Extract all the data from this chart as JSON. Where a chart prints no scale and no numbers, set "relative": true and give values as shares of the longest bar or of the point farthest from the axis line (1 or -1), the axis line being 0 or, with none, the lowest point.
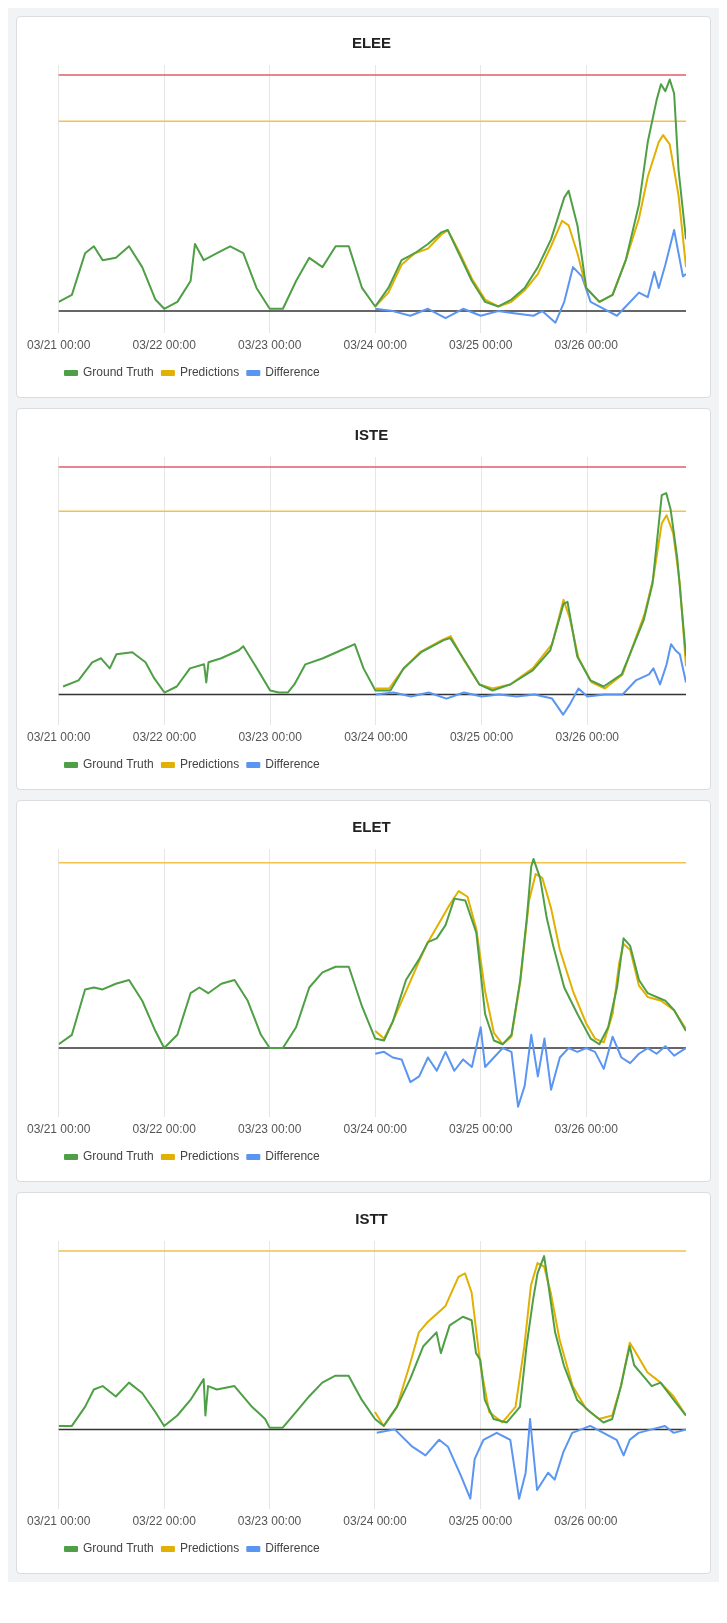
{
  "chart_data": [
    {
      "type": "line",
      "title": "ELEE",
      "relative": true,
      "grid": "x",
      "legend": "bottom left",
      "xlim": [
        "--03-21T00:00",
        "--03-26T22:42"
      ],
      "xticks": [
        {
          "value": "--03-21T00:00",
          "label": "03/21 00:00"
        },
        {
          "value": "--03-22T00:00",
          "label": "03/22 00:00"
        },
        {
          "value": "--03-23T00:00",
          "label": "03/23 00:00"
        },
        {
          "value": "--03-24T00:00",
          "label": "03/24 00:00"
        },
        {
          "value": "--03-25T00:00",
          "label": "03/25 00:00"
        },
        {
          "value": "--03-26T00:00",
          "label": "03/26 00:00"
        }
      ],
      "ref_lines": [
        {
          "axis": "y",
          "value": 1.02,
          "color": "#e25c6a"
        },
        {
          "axis": "y",
          "value": 0.82,
          "color": "#f2c14e"
        }
      ],
      "series": [
        {
          "name": "Ground Truth",
          "color": "#4e9f45",
          "x": [
            "--03-21T00:00",
            "--03-21T03:00",
            "--03-21T06:00",
            "--03-21T08:00",
            "--03-21T10:00",
            "--03-21T13:00",
            "--03-21T16:00",
            "--03-21T19:00",
            "--03-21T22:00",
            "--03-22T00:00",
            "--03-22T03:00",
            "--03-22T06:00",
            "--03-22T07:00",
            "--03-22T09:00",
            "--03-22T12:00",
            "--03-22T15:00",
            "--03-22T18:00",
            "--03-22T21:00",
            "--03-23T00:00",
            "--03-23T03:00",
            "--03-23T06:00",
            "--03-23T09:00",
            "--03-23T12:00",
            "--03-23T15:00",
            "--03-23T18:00",
            "--03-23T21:00",
            "--03-24T00:00",
            "--03-24T03:00",
            "--03-24T06:00",
            "--03-24T09:00",
            "--03-24T12:00",
            "--03-24T15:00",
            "--03-24T16:30",
            "--03-24T19:00",
            "--03-24T22:00",
            "--03-25T01:00",
            "--03-25T04:00",
            "--03-25T07:00",
            "--03-25T10:00",
            "--03-25T13:00",
            "--03-25T16:00",
            "--03-25T19:00",
            "--03-25T20:00",
            "--03-25T22:00",
            "--03-26T00:00",
            "--03-26T03:00",
            "--03-26T06:00",
            "--03-26T09:00",
            "--03-26T12:00",
            "--03-26T14:00",
            "--03-26T16:00",
            "--03-26T17:00",
            "--03-26T18:00",
            "--03-26T19:00",
            "--03-26T20:00",
            "--03-26T21:00",
            "--03-26T22:42"
          ],
          "values": [
            0.04,
            0.07,
            0.25,
            0.28,
            0.22,
            0.23,
            0.28,
            0.19,
            0.05,
            0.01,
            0.04,
            0.13,
            0.29,
            0.22,
            0.25,
            0.28,
            0.25,
            0.1,
            0.01,
            0.01,
            0.13,
            0.23,
            0.19,
            0.28,
            0.28,
            0.1,
            0.02,
            0.1,
            0.22,
            0.25,
            0.29,
            0.34,
            0.35,
            0.25,
            0.13,
            0.04,
            0.02,
            0.05,
            0.1,
            0.19,
            0.31,
            0.49,
            0.52,
            0.37,
            0.1,
            0.04,
            0.07,
            0.22,
            0.46,
            0.73,
            0.91,
            0.98,
            0.95,
            1,
            0.94,
            0.61,
            0.31
          ]
        },
        {
          "name": "Predictions",
          "color": "#e2b000",
          "x": [
            "--03-24T00:00",
            "--03-24T03:00",
            "--03-24T06:00",
            "--03-24T09:00",
            "--03-24T12:00",
            "--03-24T15:00",
            "--03-24T16:30",
            "--03-24T19:00",
            "--03-24T22:00",
            "--03-25T01:00",
            "--03-25T04:00",
            "--03-25T07:00",
            "--03-25T10:00",
            "--03-25T13:00",
            "--03-25T16:00",
            "--03-25T18:30",
            "--03-25T20:00",
            "--03-25T22:00",
            "--03-26T00:00",
            "--03-26T03:00",
            "--03-26T06:00",
            "--03-26T09:00",
            "--03-26T12:00",
            "--03-26T14:00",
            "--03-26T16:30",
            "--03-26T17:30",
            "--03-26T19:00",
            "--03-26T21:00",
            "--03-26T22:42"
          ],
          "values": [
            0.02,
            0.08,
            0.2,
            0.25,
            0.27,
            0.33,
            0.35,
            0.26,
            0.14,
            0.05,
            0.02,
            0.04,
            0.09,
            0.16,
            0.28,
            0.39,
            0.37,
            0.25,
            0.1,
            0.04,
            0.07,
            0.22,
            0.4,
            0.58,
            0.73,
            0.76,
            0.72,
            0.5,
            0.19
          ]
        },
        {
          "name": "Difference",
          "color": "#5b95f2",
          "x": [
            "--03-24T00:00",
            "--03-24T04:00",
            "--03-24T08:00",
            "--03-24T12:00",
            "--03-24T16:00",
            "--03-24T20:00",
            "--03-25T00:00",
            "--03-25T04:00",
            "--03-25T08:00",
            "--03-25T12:00",
            "--03-25T14:00",
            "--03-25T17:00",
            "--03-25T19:00",
            "--03-25T21:00",
            "--03-25T23:00",
            "--03-26T01:00",
            "--03-26T04:00",
            "--03-26T07:00",
            "--03-26T09:00",
            "--03-26T12:00",
            "--03-26T14:00",
            "--03-26T15:30",
            "--03-26T16:30",
            "--03-26T18:00",
            "--03-26T20:00",
            "--03-26T21:00",
            "--03-26T22:00",
            "--03-26T22:42"
          ],
          "values": [
            0.01,
            0,
            -0.02,
            0.01,
            -0.03,
            0.01,
            -0.02,
            0,
            -0.01,
            -0.02,
            0,
            -0.05,
            0.04,
            0.19,
            0.15,
            0.04,
            0.01,
            -0.02,
            0.02,
            0.08,
            0.06,
            0.17,
            0.1,
            0.2,
            0.35,
            0.25,
            0.15,
            0.16
          ]
        }
      ]
    },
    {
      "type": "line",
      "title": "ISTE",
      "relative": true,
      "grid": "x",
      "legend": "bottom left",
      "xlim": [
        "--03-21T00:00",
        "--03-26T22:24"
      ],
      "xticks": [
        {
          "value": "--03-21T00:00",
          "label": "03/21 00:00"
        },
        {
          "value": "--03-22T00:00",
          "label": "03/22 00:00"
        },
        {
          "value": "--03-23T00:00",
          "label": "03/23 00:00"
        },
        {
          "value": "--03-24T00:00",
          "label": "03/24 00:00"
        },
        {
          "value": "--03-25T00:00",
          "label": "03/25 00:00"
        },
        {
          "value": "--03-26T00:00",
          "label": "03/26 00:00"
        }
      ],
      "ref_lines": [
        {
          "axis": "y",
          "value": 1.13,
          "color": "#e25c6a"
        },
        {
          "axis": "y",
          "value": 0.91,
          "color": "#f2c14e"
        }
      ],
      "series": [
        {
          "name": "Ground Truth",
          "color": "#4e9f45",
          "x": [
            "--03-21T01:00",
            "--03-21T04:30",
            "--03-21T07:36",
            "--03-21T09:36",
            "--03-21T11:36",
            "--03-21T13:06",
            "--03-21T16:42",
            "--03-21T19:42",
            "--03-21T21:42",
            "--03-22T00:00",
            "--03-22T02:48",
            "--03-22T05:48",
            "--03-22T09:00",
            "--03-22T09:30",
            "--03-22T10:00",
            "--03-22T12:54",
            "--03-22T16:54",
            "--03-22T17:54",
            "--03-22T21:00",
            "--03-23T00:00",
            "--03-23T02:00",
            "--03-23T04:00",
            "--03-23T05:30",
            "--03-23T08:00",
            "--03-23T12:00",
            "--03-23T16:06",
            "--03-23T19:12",
            "--03-23T21:12",
            "--03-23T23:54",
            "--03-24T03:18",
            "--03-24T06:18",
            "--03-24T10:18",
            "--03-24T15:24",
            "--03-24T16:54",
            "--03-24T20:24",
            "--03-24T23:30",
            "--03-25T02:30",
            "--03-25T06:30",
            "--03-25T11:36",
            "--03-25T15:36",
            "--03-25T18:36",
            "--03-25T19:30",
            "--03-25T21:42",
            "--03-26T00:42",
            "--03-26T03:42",
            "--03-26T07:48",
            "--03-26T12:48",
            "--03-26T14:48",
            "--03-26T16:54",
            "--03-26T17:54",
            "--03-26T18:54",
            "--03-26T20:24",
            "--03-26T22:24"
          ],
          "values": [
            0.04,
            0.07,
            0.16,
            0.18,
            0.13,
            0.2,
            0.21,
            0.16,
            0.08,
            0.01,
            0.04,
            0.13,
            0.15,
            0.06,
            0.16,
            0.18,
            0.22,
            0.24,
            0.13,
            0.02,
            0.01,
            0.01,
            0.05,
            0.15,
            0.18,
            0.22,
            0.25,
            0.13,
            0.02,
            0.02,
            0.13,
            0.21,
            0.27,
            0.28,
            0.16,
            0.05,
            0.02,
            0.05,
            0.12,
            0.22,
            0.45,
            0.46,
            0.19,
            0.07,
            0.04,
            0.1,
            0.37,
            0.55,
            0.99,
            1,
            0.92,
            0.68,
            0.19
          ]
        },
        {
          "name": "Predictions",
          "color": "#e2b000",
          "x": [
            "--03-24T00:00",
            "--03-24T03:00",
            "--03-24T06:00",
            "--03-24T10:00",
            "--03-24T15:00",
            "--03-24T17:00",
            "--03-24T20:00",
            "--03-24T23:30",
            "--03-25T02:30",
            "--03-25T06:30",
            "--03-25T11:36",
            "--03-25T16:00",
            "--03-25T18:36",
            "--03-25T20:00",
            "--03-25T22:00",
            "--03-26T01:00",
            "--03-26T04:00",
            "--03-26T08:00",
            "--03-26T13:00",
            "--03-26T15:00",
            "--03-26T16:54",
            "--03-26T18:00",
            "--03-26T19:30",
            "--03-26T21:00",
            "--03-26T22:24"
          ],
          "values": [
            0.03,
            0.03,
            0.12,
            0.21,
            0.27,
            0.29,
            0.17,
            0.05,
            0.03,
            0.05,
            0.13,
            0.25,
            0.47,
            0.38,
            0.18,
            0.06,
            0.03,
            0.1,
            0.4,
            0.58,
            0.85,
            0.89,
            0.8,
            0.55,
            0.14
          ]
        },
        {
          "name": "Difference",
          "color": "#5b95f2",
          "x": [
            "--03-24T00:00",
            "--03-24T04:00",
            "--03-24T08:00",
            "--03-24T12:00",
            "--03-24T16:00",
            "--03-24T20:00",
            "--03-25T00:00",
            "--03-25T04:00",
            "--03-25T08:00",
            "--03-25T12:00",
            "--03-25T16:00",
            "--03-25T18:30",
            "--03-25T20:00",
            "--03-25T22:00",
            "--03-26T00:00",
            "--03-26T04:00",
            "--03-26T08:00",
            "--03-26T11:00",
            "--03-26T14:00",
            "--03-26T15:00",
            "--03-26T16:30",
            "--03-26T18:00",
            "--03-26T19:00",
            "--03-26T20:00",
            "--03-26T21:00",
            "--03-26T22:24"
          ],
          "values": [
            0,
            0.01,
            -0.01,
            0.01,
            -0.02,
            0.01,
            -0.01,
            0,
            -0.01,
            0,
            -0.02,
            -0.1,
            -0.05,
            0.03,
            -0.01,
            0,
            0,
            0.07,
            0.1,
            0.13,
            0.05,
            0.15,
            0.25,
            0.22,
            0.2,
            0.06
          ]
        }
      ]
    },
    {
      "type": "line",
      "title": "ELET",
      "relative": true,
      "grid": "x",
      "legend": "bottom left",
      "xlim": [
        "--03-21T00:00",
        "--03-26T22:42"
      ],
      "xticks": [
        {
          "value": "--03-21T00:00",
          "label": "03/21 00:00"
        },
        {
          "value": "--03-22T00:00",
          "label": "03/22 00:00"
        },
        {
          "value": "--03-23T00:00",
          "label": "03/23 00:00"
        },
        {
          "value": "--03-24T00:00",
          "label": "03/24 00:00"
        },
        {
          "value": "--03-25T00:00",
          "label": "03/25 00:00"
        },
        {
          "value": "--03-26T00:00",
          "label": "03/26 00:00"
        }
      ],
      "ref_lines": [
        {
          "axis": "y",
          "value": 0.98,
          "color": "#f2c14e"
        }
      ],
      "series": [
        {
          "name": "Ground Truth",
          "color": "#4e9f45",
          "x": [
            "--03-21T00:00",
            "--03-21T03:00",
            "--03-21T06:00",
            "--03-21T08:00",
            "--03-21T10:00",
            "--03-21T13:00",
            "--03-21T16:00",
            "--03-21T19:00",
            "--03-21T22:00",
            "--03-22T00:00",
            "--03-22T03:00",
            "--03-22T06:00",
            "--03-22T08:00",
            "--03-22T10:00",
            "--03-22T13:00",
            "--03-22T16:00",
            "--03-22T19:00",
            "--03-22T22:00",
            "--03-23T00:00",
            "--03-23T03:00",
            "--03-23T06:00",
            "--03-23T09:00",
            "--03-23T12:00",
            "--03-23T15:00",
            "--03-23T18:00",
            "--03-23T21:00",
            "--03-24T00:00",
            "--03-24T02:00",
            "--03-24T04:00",
            "--03-24T07:00",
            "--03-24T10:00",
            "--03-24T12:00",
            "--03-24T14:00",
            "--03-24T16:00",
            "--03-24T18:00",
            "--03-24T20:30",
            "--03-24T23:00",
            "--03-25T01:00",
            "--03-25T03:00",
            "--03-25T05:00",
            "--03-25T07:00",
            "--03-25T09:00",
            "--03-25T10:30",
            "--03-25T11:30",
            "--03-25T12:00",
            "--03-25T13:30",
            "--03-25T15:00",
            "--03-25T16:30",
            "--03-25T19:00",
            "--03-25T22:00",
            "--03-26T01:00",
            "--03-26T03:00",
            "--03-26T05:00",
            "--03-26T07:00",
            "--03-26T08:30",
            "--03-26T10:00",
            "--03-26T12:00",
            "--03-26T14:00",
            "--03-26T16:00",
            "--03-26T18:00",
            "--03-26T20:00",
            "--03-26T22:42"
          ],
          "values": [
            0.02,
            0.07,
            0.31,
            0.32,
            0.31,
            0.34,
            0.36,
            0.25,
            0.09,
            0,
            0.07,
            0.29,
            0.32,
            0.29,
            0.34,
            0.36,
            0.25,
            0.07,
            0,
            0,
            0.11,
            0.32,
            0.4,
            0.43,
            0.43,
            0.22,
            0.05,
            0.04,
            0.14,
            0.36,
            0.47,
            0.56,
            0.58,
            0.65,
            0.79,
            0.78,
            0.61,
            0.18,
            0.04,
            0.02,
            0.07,
            0.36,
            0.69,
            0.96,
            1,
            0.9,
            0.69,
            0.54,
            0.32,
            0.18,
            0.05,
            0.02,
            0.11,
            0.32,
            0.58,
            0.54,
            0.36,
            0.29,
            0.27,
            0.25,
            0.2,
            0.09
          ]
        },
        {
          "name": "Predictions",
          "color": "#e2b000",
          "x": [
            "--03-24T00:00",
            "--03-24T02:00",
            "--03-24T04:00",
            "--03-24T07:00",
            "--03-24T10:00",
            "--03-24T12:00",
            "--03-24T15:00",
            "--03-24T17:00",
            "--03-24T19:00",
            "--03-24T21:00",
            "--03-24T23:00",
            "--03-25T01:00",
            "--03-25T03:00",
            "--03-25T05:00",
            "--03-25T07:00",
            "--03-25T09:00",
            "--03-25T11:00",
            "--03-25T12:30",
            "--03-25T14:00",
            "--03-25T16:00",
            "--03-25T18:00",
            "--03-25T21:00",
            "--03-26T00:00",
            "--03-26T02:00",
            "--03-26T04:00",
            "--03-26T06:00",
            "--03-26T07:30",
            "--03-26T08:30",
            "--03-26T10:00",
            "--03-26T12:00",
            "--03-26T14:00",
            "--03-26T17:00",
            "--03-26T20:00",
            "--03-26T22:42"
          ],
          "values": [
            0.09,
            0.05,
            0.14,
            0.3,
            0.46,
            0.56,
            0.68,
            0.76,
            0.83,
            0.8,
            0.63,
            0.3,
            0.08,
            0.02,
            0.06,
            0.35,
            0.78,
            0.92,
            0.9,
            0.74,
            0.52,
            0.3,
            0.13,
            0.05,
            0.03,
            0.18,
            0.45,
            0.55,
            0.52,
            0.33,
            0.27,
            0.25,
            0.2,
            0.1
          ]
        },
        {
          "name": "Difference",
          "color": "#5b95f2",
          "x": [
            "--03-24T00:00",
            "--03-24T02:00",
            "--03-24T04:00",
            "--03-24T06:00",
            "--03-24T08:00",
            "--03-24T10:00",
            "--03-24T12:00",
            "--03-24T14:00",
            "--03-24T16:00",
            "--03-24T18:00",
            "--03-24T20:00",
            "--03-24T22:00",
            "--03-25T00:00",
            "--03-25T01:00",
            "--03-25T03:00",
            "--03-25T05:00",
            "--03-25T07:00",
            "--03-25T08:30",
            "--03-25T10:00",
            "--03-25T11:30",
            "--03-25T13:00",
            "--03-25T14:30",
            "--03-25T16:00",
            "--03-25T18:00",
            "--03-25T20:00",
            "--03-25T22:00",
            "--03-26T00:00",
            "--03-26T02:00",
            "--03-26T04:00",
            "--03-26T06:00",
            "--03-26T08:00",
            "--03-26T10:00",
            "--03-26T12:00",
            "--03-26T14:00",
            "--03-26T16:00",
            "--03-26T18:00",
            "--03-26T20:00",
            "--03-26T22:42"
          ],
          "values": [
            -0.03,
            -0.02,
            -0.05,
            -0.06,
            -0.18,
            -0.15,
            -0.05,
            -0.12,
            -0.02,
            -0.12,
            -0.06,
            -0.1,
            0.11,
            -0.1,
            -0.05,
            0,
            -0.02,
            -0.31,
            -0.2,
            0.07,
            -0.15,
            0.05,
            -0.22,
            -0.05,
            0,
            -0.02,
            0,
            -0.02,
            -0.11,
            0.06,
            -0.05,
            -0.08,
            -0.03,
            0,
            -0.03,
            0.01,
            -0.04,
            0
          ]
        }
      ]
    },
    {
      "type": "line",
      "title": "ISTT",
      "relative": true,
      "grid": "x",
      "legend": "bottom left",
      "xlim": [
        "--03-21T00:00",
        "--03-26T22:48"
      ],
      "xticks": [
        {
          "value": "--03-21T00:00",
          "label": "03/21 00:00"
        },
        {
          "value": "--03-22T00:00",
          "label": "03/22 00:00"
        },
        {
          "value": "--03-23T00:00",
          "label": "03/23 00:00"
        },
        {
          "value": "--03-24T00:00",
          "label": "03/24 00:00"
        },
        {
          "value": "--03-25T00:00",
          "label": "03/25 00:00"
        },
        {
          "value": "--03-26T00:00",
          "label": "03/26 00:00"
        }
      ],
      "ref_lines": [
        {
          "axis": "y",
          "value": 1.03,
          "color": "#f2c14e"
        }
      ],
      "series": [
        {
          "name": "Ground Truth",
          "color": "#4e9f45",
          "x": [
            "--03-21T00:00",
            "--03-21T03:00",
            "--03-21T06:00",
            "--03-21T08:00",
            "--03-21T10:00",
            "--03-21T13:00",
            "--03-21T16:00",
            "--03-21T19:00",
            "--03-21T22:00",
            "--03-22T00:00",
            "--03-22T03:00",
            "--03-22T06:00",
            "--03-22T09:00",
            "--03-22T09:24",
            "--03-22T10:00",
            "--03-22T12:00",
            "--03-22T16:00",
            "--03-22T20:00",
            "--03-22T23:00",
            "--03-23T00:00",
            "--03-23T03:00",
            "--03-23T06:00",
            "--03-23T09:00",
            "--03-23T12:00",
            "--03-23T15:00",
            "--03-23T18:00",
            "--03-23T21:00",
            "--03-24T00:00",
            "--03-24T02:00",
            "--03-24T05:00",
            "--03-24T08:00",
            "--03-24T11:00",
            "--03-24T14:00",
            "--03-24T15:00",
            "--03-24T17:00",
            "--03-24T20:00",
            "--03-24T22:00",
            "--03-24T23:00",
            "--03-25T00:00",
            "--03-25T01:00",
            "--03-25T03:00",
            "--03-25T06:00",
            "--03-25T09:00",
            "--03-25T10:30",
            "--03-25T12:00",
            "--03-25T13:00",
            "--03-25T14:30",
            "--03-25T15:30",
            "--03-25T17:00",
            "--03-25T19:00",
            "--03-25T22:00",
            "--03-26T01:00",
            "--03-26T04:00",
            "--03-26T06:00",
            "--03-26T08:00",
            "--03-26T09:00",
            "--03-26T10:00",
            "--03-26T11:00",
            "--03-26T13:00",
            "--03-26T15:00",
            "--03-26T17:00",
            "--03-26T20:00",
            "--03-26T22:48"
          ],
          "values": [
            0.02,
            0.02,
            0.13,
            0.23,
            0.25,
            0.19,
            0.27,
            0.21,
            0.1,
            0.02,
            0.08,
            0.17,
            0.29,
            0.08,
            0.25,
            0.23,
            0.25,
            0.13,
            0.06,
            0.01,
            0.01,
            0.1,
            0.19,
            0.27,
            0.31,
            0.31,
            0.17,
            0.06,
            0.02,
            0.13,
            0.29,
            0.48,
            0.56,
            0.44,
            0.6,
            0.65,
            0.63,
            0.44,
            0.4,
            0.17,
            0.06,
            0.04,
            0.13,
            0.48,
            0.75,
            0.9,
            1,
            0.83,
            0.56,
            0.37,
            0.17,
            0.1,
            0.04,
            0.06,
            0.25,
            0.37,
            0.48,
            0.37,
            0.31,
            0.25,
            0.27,
            0.17,
            0.08
          ]
        },
        {
          "name": "Predictions",
          "color": "#e2b000",
          "x": [
            "--03-24T00:00",
            "--03-24T02:00",
            "--03-24T05:00",
            "--03-24T08:00",
            "--03-24T10:00",
            "--03-24T12:00",
            "--03-24T16:00",
            "--03-24T19:00",
            "--03-24T20:30",
            "--03-24T22:00",
            "--03-25T00:00",
            "--03-25T02:00",
            "--03-25T05:00",
            "--03-25T08:00",
            "--03-25T10:00",
            "--03-25T11:30",
            "--03-25T13:00",
            "--03-25T14:30",
            "--03-25T16:00",
            "--03-25T18:00",
            "--03-25T21:00",
            "--03-26T00:00",
            "--03-26T03:00",
            "--03-26T06:00",
            "--03-26T08:00",
            "--03-26T10:00",
            "--03-26T11:00",
            "--03-26T14:00",
            "--03-26T17:00",
            "--03-26T20:00",
            "--03-26T22:48"
          ],
          "values": [
            0.1,
            0.02,
            0.13,
            0.38,
            0.56,
            0.62,
            0.71,
            0.88,
            0.9,
            0.79,
            0.37,
            0.1,
            0.04,
            0.13,
            0.48,
            0.83,
            0.96,
            0.94,
            0.79,
            0.52,
            0.25,
            0.12,
            0.06,
            0.08,
            0.25,
            0.5,
            0.46,
            0.33,
            0.27,
            0.19,
            0.08
          ]
        },
        {
          "name": "Difference",
          "color": "#5b95f2",
          "x": [
            "--03-24T00:24",
            "--03-24T04:30",
            "--03-24T08:30",
            "--03-24T11:30",
            "--03-24T14:36",
            "--03-24T16:36",
            "--03-24T19:36",
            "--03-24T21:42",
            "--03-24T22:42",
            "--03-25T00:42",
            "--03-25T03:42",
            "--03-25T06:48",
            "--03-25T08:48",
            "--03-25T10:18",
            "--03-25T11:18",
            "--03-25T12:54",
            "--03-25T15:24",
            "--03-25T16:54",
            "--03-25T18:54",
            "--03-25T20:54",
            "--03-26T01:00",
            "--03-26T04:00",
            "--03-26T07:00",
            "--03-26T08:36",
            "--03-26T10:00",
            "--03-26T12:00",
            "--03-26T15:00",
            "--03-26T18:00",
            "--03-26T20:00",
            "--03-26T22:48"
          ],
          "values": [
            -0.02,
            0,
            -0.1,
            -0.15,
            -0.06,
            -0.1,
            -0.27,
            -0.4,
            -0.17,
            -0.06,
            -0.02,
            -0.06,
            -0.4,
            -0.25,
            0.06,
            -0.35,
            -0.25,
            -0.29,
            -0.13,
            -0.02,
            0.02,
            -0.02,
            -0.06,
            -0.15,
            -0.06,
            -0.02,
            0,
            0.02,
            -0.02,
            0
          ]
        }
      ]
    }
  ]
}
